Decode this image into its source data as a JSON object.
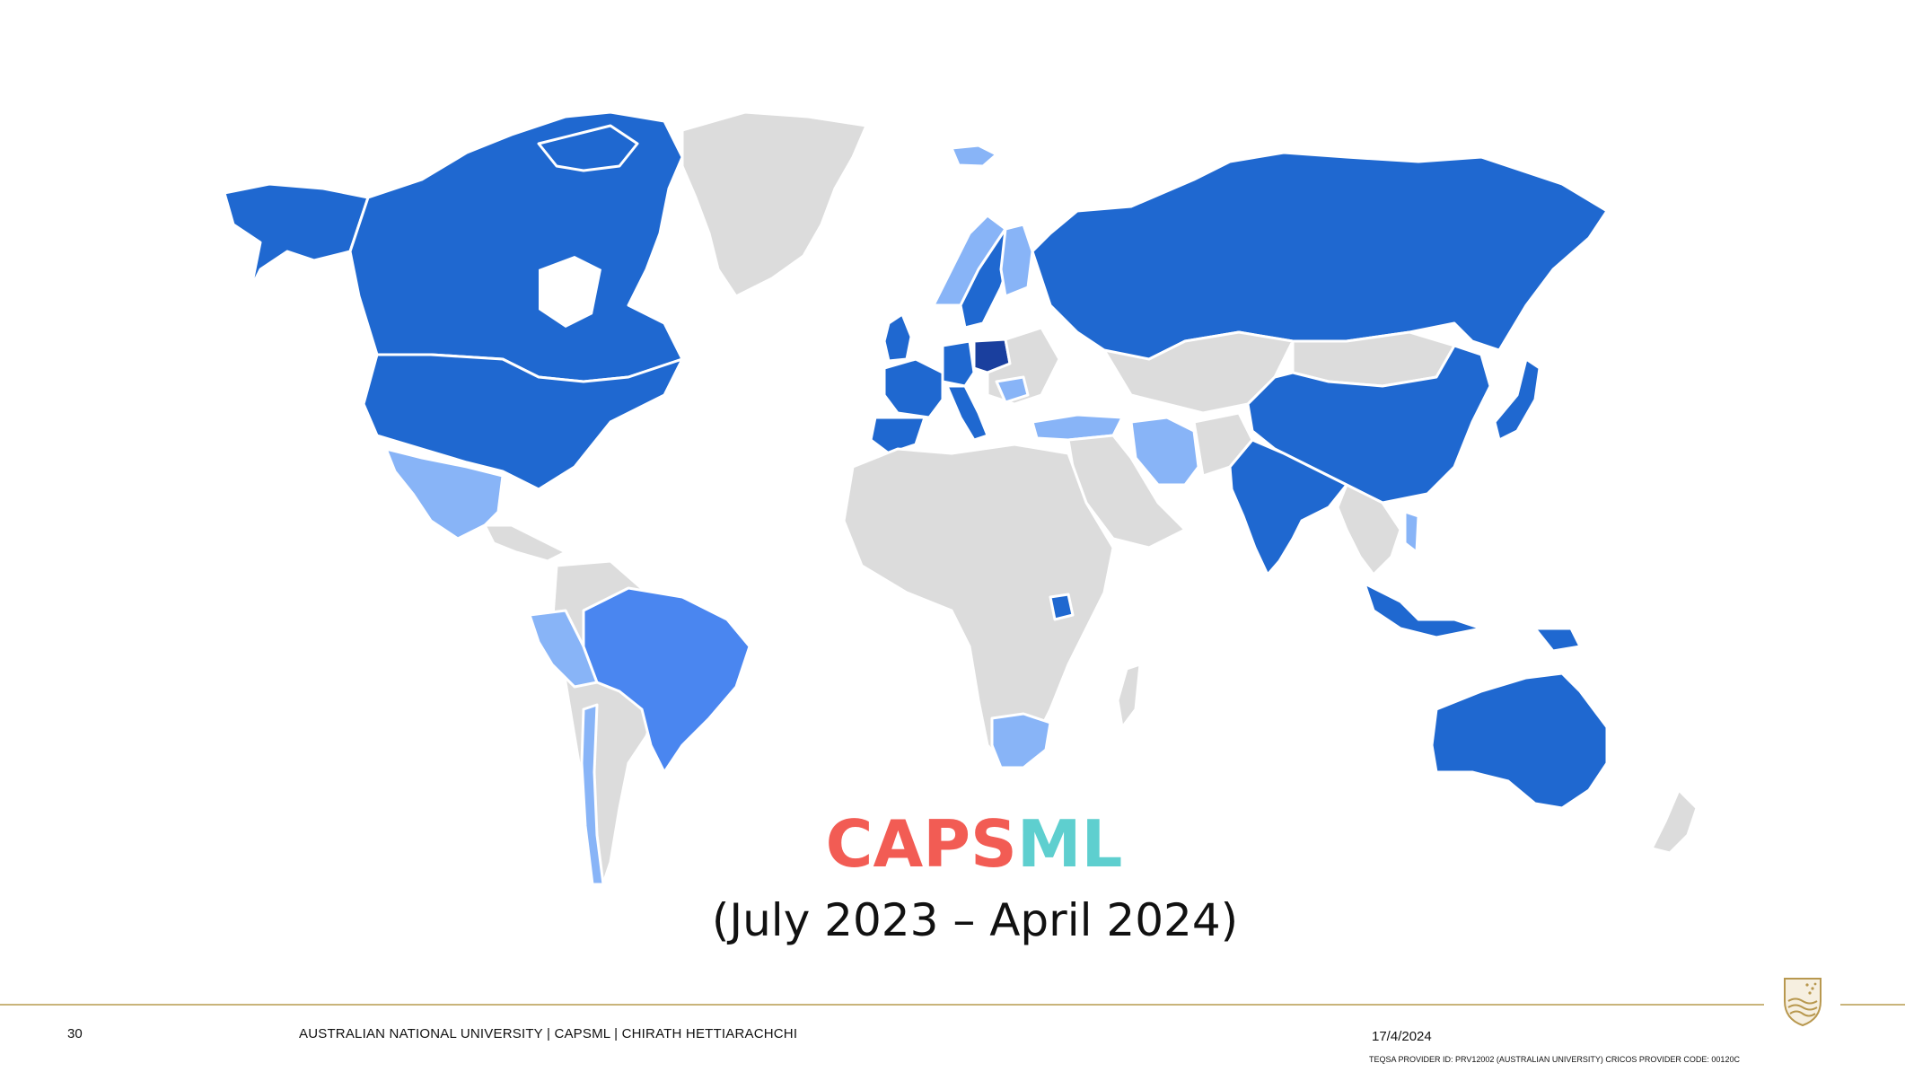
{
  "slide": {
    "title_part1": "CAPS",
    "title_part2": "ML",
    "subtitle": "(July 2023 – April 2024)",
    "page_number": "30",
    "footer_credit": "AUSTRALIAN NATIONAL UNIVERSITY |   CAPSML   |   CHIRATH HETTIARACHCHI",
    "date": "17/4/2024",
    "provider_line": "TEQSA PROVIDER ID: PRV12002 (AUSTRALIAN UNIVERSITY) CRICOS PROVIDER CODE: 00120C"
  },
  "map": {
    "legend_colors": {
      "no_data": "#dcdcdc",
      "darkest": "#1a3f9e",
      "dark": "#1f68d0",
      "medium": "#4a86f0",
      "light": "#88b4f7"
    },
    "regions": [
      {
        "name": "Canada",
        "shade": "dark"
      },
      {
        "name": "United States",
        "shade": "dark"
      },
      {
        "name": "Alaska",
        "shade": "dark"
      },
      {
        "name": "Greenland",
        "shade": "no_data"
      },
      {
        "name": "Mexico",
        "shade": "light"
      },
      {
        "name": "Central America",
        "shade": "no_data"
      },
      {
        "name": "Brazil",
        "shade": "medium"
      },
      {
        "name": "Peru",
        "shade": "light"
      },
      {
        "name": "Chile",
        "shade": "light"
      },
      {
        "name": "South America (other)",
        "shade": "no_data"
      },
      {
        "name": "Iceland",
        "shade": "light"
      },
      {
        "name": "Norway",
        "shade": "light"
      },
      {
        "name": "Sweden",
        "shade": "dark"
      },
      {
        "name": "Finland",
        "shade": "light"
      },
      {
        "name": "United Kingdom",
        "shade": "dark"
      },
      {
        "name": "France",
        "shade": "dark"
      },
      {
        "name": "Spain",
        "shade": "dark"
      },
      {
        "name": "Germany",
        "shade": "dark"
      },
      {
        "name": "Poland",
        "shade": "darkest"
      },
      {
        "name": "Italy",
        "shade": "dark"
      },
      {
        "name": "Romania",
        "shade": "light"
      },
      {
        "name": "Turkey",
        "shade": "light"
      },
      {
        "name": "Iran",
        "shade": "light"
      },
      {
        "name": "Russia",
        "shade": "dark"
      },
      {
        "name": "China",
        "shade": "dark"
      },
      {
        "name": "India",
        "shade": "dark"
      },
      {
        "name": "Japan",
        "shade": "dark"
      },
      {
        "name": "Indonesia",
        "shade": "dark"
      },
      {
        "name": "Philippines",
        "shade": "light"
      },
      {
        "name": "Papua New Guinea",
        "shade": "dark"
      },
      {
        "name": "Australia",
        "shade": "dark"
      },
      {
        "name": "New Zealand",
        "shade": "no_data"
      },
      {
        "name": "Africa",
        "shade": "no_data"
      },
      {
        "name": "Uganda",
        "shade": "dark"
      },
      {
        "name": "South Africa",
        "shade": "light"
      },
      {
        "name": "Madagascar",
        "shade": "no_data"
      },
      {
        "name": "Middle East (other)",
        "shade": "no_data"
      },
      {
        "name": "Central Asia",
        "shade": "no_data"
      },
      {
        "name": "Mongolia",
        "shade": "no_data"
      },
      {
        "name": "Southeast Asia (other)",
        "shade": "no_data"
      }
    ]
  }
}
